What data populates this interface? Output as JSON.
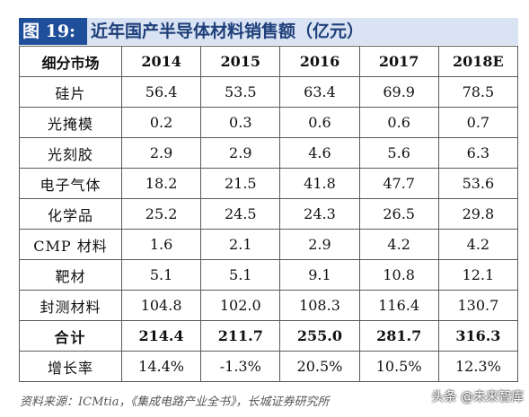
{
  "title": {
    "figure_label": "图 19:",
    "text": "近年国产半导体材料销售额（亿元）"
  },
  "table": {
    "headers": [
      "细分市场",
      "2014",
      "2015",
      "2016",
      "2017",
      "2018E"
    ],
    "rows": [
      [
        "硅片",
        "56.4",
        "53.5",
        "63.4",
        "69.9",
        "78.5"
      ],
      [
        "光掩模",
        "0.2",
        "0.3",
        "0.6",
        "0.6",
        "0.7"
      ],
      [
        "光刻胶",
        "2.9",
        "2.9",
        "4.6",
        "5.6",
        "6.3"
      ],
      [
        "电子气体",
        "18.2",
        "21.5",
        "41.8",
        "47.7",
        "53.6"
      ],
      [
        "化学品",
        "25.2",
        "24.5",
        "24.3",
        "26.5",
        "29.8"
      ],
      [
        "CMP 材料",
        "1.6",
        "2.1",
        "2.9",
        "4.2",
        "4.2"
      ],
      [
        "靶材",
        "5.1",
        "5.1",
        "9.1",
        "10.8",
        "12.1"
      ],
      [
        "封测材料",
        "104.8",
        "102.0",
        "108.3",
        "116.4",
        "130.7"
      ],
      [
        "合计",
        "214.4",
        "211.7",
        "255.0",
        "281.7",
        "316.3"
      ],
      [
        "增长率",
        "14.4%",
        "-1.3%",
        "20.5%",
        "10.5%",
        "12.3%"
      ]
    ]
  },
  "source": "资料来源：ICMtia，《集成电路产业全书》，长城证券研究所",
  "watermark": "头条 @未来智库",
  "colors": {
    "badge_bg": "#1f4e9a",
    "title_bar_bg": "#d9e3f3",
    "title_text": "#1f3f7a"
  }
}
